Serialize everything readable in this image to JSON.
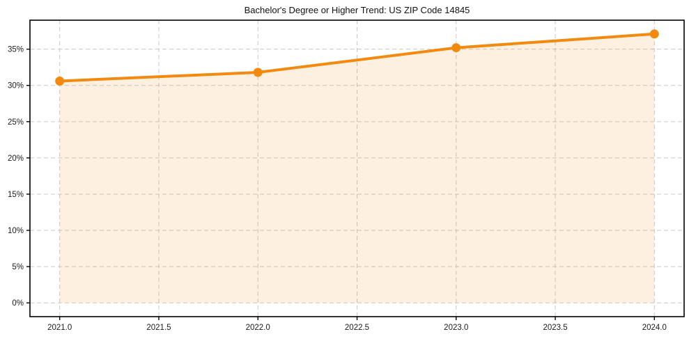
{
  "chart_data": {
    "type": "line",
    "title": "Bachelor's Degree or Higher Trend: US ZIP Code 14845",
    "x": [
      2021,
      2022,
      2023,
      2024
    ],
    "values": [
      30.6,
      31.8,
      35.2,
      37.1
    ],
    "xlabel": "",
    "ylabel": "",
    "xlim": [
      2020.85,
      2024.15
    ],
    "ylim": [
      -1.9,
      39.0
    ],
    "xticks": {
      "values": [
        2021.0,
        2021.5,
        2022.0,
        2022.5,
        2023.0,
        2023.5,
        2024.0
      ],
      "labels": [
        "2021.0",
        "2021.5",
        "2022.0",
        "2022.5",
        "2023.0",
        "2023.5",
        "2024.0"
      ]
    },
    "yticks": {
      "values": [
        0,
        5,
        10,
        15,
        20,
        25,
        30,
        35
      ],
      "labels": [
        "0%",
        "5%",
        "10%",
        "15%",
        "20%",
        "25%",
        "30%",
        "35%"
      ]
    },
    "grid": "dashed",
    "legend": "none",
    "marker": "circle",
    "area_fill": true,
    "colors": {
      "line": "#f18a0e",
      "marker": "#f18a0e",
      "area": "rgba(241,138,14,0.13)",
      "grid": "#c8c8c8",
      "spine": "#000000",
      "text": "#1a1a1a"
    }
  }
}
